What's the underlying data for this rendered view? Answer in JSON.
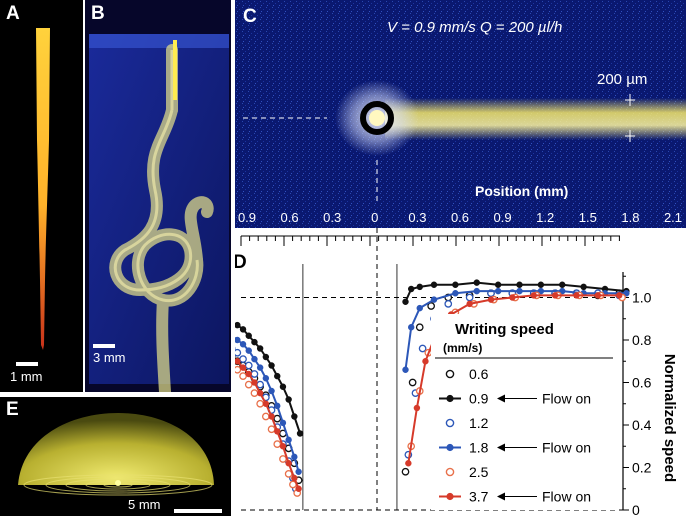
{
  "panels": {
    "a": {
      "label": "A",
      "scale": "1 mm"
    },
    "b": {
      "label": "B",
      "scale": "3 mm"
    },
    "c": {
      "label": "C",
      "params": "V = 0.9 mm/s   Q = 200 µl/h",
      "width_label": "200 µm",
      "axis_title": "Position (mm)",
      "ticks": [
        "0.9",
        "0.6",
        "0.3",
        "0",
        "0.3",
        "0.6",
        "0.9",
        "1.2",
        "1.5",
        "1.8",
        "2.1"
      ]
    },
    "d": {
      "label": "D"
    },
    "e": {
      "label": "E",
      "scale": "5 mm"
    }
  },
  "colors": {
    "black": "#111111",
    "blue": "#2c57b8",
    "red": "#d63a2a",
    "orange": "#e8704a",
    "glow": "#f5e86a"
  },
  "chart_data": {
    "type": "scatter",
    "ylabel": "Normalized speed",
    "yticks": [
      "0",
      "0.2",
      "0.4",
      "0.6",
      "0.8",
      "1.0"
    ],
    "ylim": [
      0,
      1.12
    ],
    "legend": {
      "title": "Writing speed",
      "unit": "(mm/s)",
      "flow_label": "Flow on",
      "placement": "bottom-right"
    },
    "series": [
      {
        "name": "0.6",
        "marker": "open",
        "color": "#111111",
        "flow_on": false,
        "left": [
          [
            -1.02,
            0.72
          ],
          [
            -0.98,
            0.7
          ],
          [
            -0.94,
            0.68
          ],
          [
            -0.9,
            0.65
          ],
          [
            -0.86,
            0.62
          ],
          [
            -0.82,
            0.58
          ],
          [
            -0.78,
            0.54
          ],
          [
            -0.74,
            0.49
          ],
          [
            -0.7,
            0.43
          ],
          [
            -0.66,
            0.36
          ],
          [
            -0.62,
            0.29
          ],
          [
            -0.58,
            0.22
          ],
          [
            -0.55,
            0.14
          ]
        ],
        "right": [
          [
            0.2,
            0.18
          ],
          [
            0.25,
            0.6
          ],
          [
            0.3,
            0.86
          ],
          [
            0.38,
            0.96
          ],
          [
            0.5,
            1.0
          ],
          [
            0.65,
            1.01
          ],
          [
            0.8,
            1.02
          ],
          [
            0.95,
            1.02
          ],
          [
            1.1,
            1.02
          ],
          [
            1.25,
            1.02
          ],
          [
            1.4,
            1.02
          ],
          [
            1.55,
            1.01
          ],
          [
            1.7,
            1.02
          ]
        ]
      },
      {
        "name": "0.9",
        "marker": "filled",
        "color": "#111111",
        "flow_on": true,
        "left": [
          [
            -1.02,
            0.88
          ],
          [
            -0.98,
            0.87
          ],
          [
            -0.94,
            0.85
          ],
          [
            -0.9,
            0.82
          ],
          [
            -0.86,
            0.79
          ],
          [
            -0.82,
            0.76
          ],
          [
            -0.78,
            0.72
          ],
          [
            -0.74,
            0.68
          ],
          [
            -0.7,
            0.63
          ],
          [
            -0.66,
            0.58
          ],
          [
            -0.62,
            0.52
          ],
          [
            -0.58,
            0.44
          ],
          [
            -0.54,
            0.36
          ]
        ],
        "right": [
          [
            0.2,
            0.98
          ],
          [
            0.24,
            1.04
          ],
          [
            0.3,
            1.05
          ],
          [
            0.4,
            1.06
          ],
          [
            0.55,
            1.06
          ],
          [
            0.7,
            1.07
          ],
          [
            0.85,
            1.06
          ],
          [
            1.0,
            1.06
          ],
          [
            1.15,
            1.06
          ],
          [
            1.3,
            1.06
          ],
          [
            1.45,
            1.05
          ],
          [
            1.6,
            1.04
          ],
          [
            1.75,
            1.03
          ]
        ]
      },
      {
        "name": "1.2",
        "marker": "open",
        "color": "#2c57b8",
        "flow_on": false,
        "left": [
          [
            -1.02,
            0.76
          ],
          [
            -0.98,
            0.74
          ],
          [
            -0.94,
            0.71
          ],
          [
            -0.9,
            0.68
          ],
          [
            -0.86,
            0.64
          ],
          [
            -0.82,
            0.59
          ],
          [
            -0.78,
            0.53
          ],
          [
            -0.74,
            0.47
          ],
          [
            -0.7,
            0.39
          ],
          [
            -0.66,
            0.31
          ],
          [
            -0.62,
            0.23
          ],
          [
            -0.59,
            0.15
          ],
          [
            -0.57,
            0.1
          ]
        ],
        "right": [
          [
            0.22,
            0.26
          ],
          [
            0.27,
            0.55
          ],
          [
            0.32,
            0.76
          ],
          [
            0.4,
            0.9
          ],
          [
            0.5,
            0.97
          ],
          [
            0.65,
            1.0
          ],
          [
            0.8,
            1.02
          ],
          [
            0.95,
            1.02
          ],
          [
            1.1,
            1.02
          ],
          [
            1.25,
            1.02
          ],
          [
            1.4,
            1.02
          ],
          [
            1.55,
            1.02
          ],
          [
            1.7,
            1.01
          ]
        ]
      },
      {
        "name": "1.8",
        "marker": "filled",
        "color": "#2c57b8",
        "flow_on": true,
        "left": [
          [
            -1.02,
            0.82
          ],
          [
            -0.98,
            0.8
          ],
          [
            -0.94,
            0.78
          ],
          [
            -0.9,
            0.75
          ],
          [
            -0.86,
            0.71
          ],
          [
            -0.82,
            0.67
          ],
          [
            -0.78,
            0.62
          ],
          [
            -0.74,
            0.56
          ],
          [
            -0.7,
            0.49
          ],
          [
            -0.66,
            0.41
          ],
          [
            -0.62,
            0.33
          ],
          [
            -0.58,
            0.25
          ],
          [
            -0.55,
            0.18
          ]
        ],
        "right": [
          [
            0.2,
            0.66
          ],
          [
            0.24,
            0.86
          ],
          [
            0.3,
            0.95
          ],
          [
            0.4,
            0.99
          ],
          [
            0.55,
            1.02
          ],
          [
            0.7,
            1.03
          ],
          [
            0.85,
            1.03
          ],
          [
            1.0,
            1.03
          ],
          [
            1.15,
            1.03
          ],
          [
            1.3,
            1.03
          ],
          [
            1.45,
            1.02
          ],
          [
            1.6,
            1.02
          ],
          [
            1.75,
            1.02
          ]
        ]
      },
      {
        "name": "2.5",
        "marker": "open",
        "color": "#e8704a",
        "flow_on": false,
        "left": [
          [
            -0.98,
            0.66
          ],
          [
            -0.94,
            0.63
          ],
          [
            -0.9,
            0.59
          ],
          [
            -0.86,
            0.55
          ],
          [
            -0.82,
            0.5
          ],
          [
            -0.78,
            0.44
          ],
          [
            -0.74,
            0.38
          ],
          [
            -0.7,
            0.31
          ],
          [
            -0.66,
            0.24
          ],
          [
            -0.62,
            0.17
          ],
          [
            -0.59,
            0.12
          ],
          [
            -0.56,
            0.08
          ]
        ],
        "right": [
          [
            0.24,
            0.3
          ],
          [
            0.3,
            0.56
          ],
          [
            0.36,
            0.74
          ],
          [
            0.44,
            0.86
          ],
          [
            0.55,
            0.93
          ],
          [
            0.68,
            0.97
          ],
          [
            0.82,
            0.99
          ],
          [
            0.97,
            1.0
          ],
          [
            1.12,
            1.01
          ],
          [
            1.27,
            1.01
          ],
          [
            1.42,
            1.01
          ],
          [
            1.57,
            1.01
          ],
          [
            1.72,
            1.0
          ]
        ]
      },
      {
        "name": "3.7",
        "marker": "filled",
        "color": "#d63a2a",
        "flow_on": true,
        "left": [
          [
            -0.98,
            0.7
          ],
          [
            -0.94,
            0.67
          ],
          [
            -0.9,
            0.64
          ],
          [
            -0.86,
            0.6
          ],
          [
            -0.82,
            0.55
          ],
          [
            -0.78,
            0.5
          ],
          [
            -0.74,
            0.44
          ],
          [
            -0.7,
            0.37
          ],
          [
            -0.66,
            0.3
          ],
          [
            -0.62,
            0.22
          ],
          [
            -0.58,
            0.15
          ],
          [
            -0.55,
            0.1
          ]
        ],
        "right": [
          [
            0.22,
            0.22
          ],
          [
            0.28,
            0.48
          ],
          [
            0.34,
            0.7
          ],
          [
            0.42,
            0.84
          ],
          [
            0.52,
            0.92
          ],
          [
            0.65,
            0.97
          ],
          [
            0.8,
            0.99
          ],
          [
            0.95,
            1.0
          ],
          [
            1.1,
            1.01
          ],
          [
            1.25,
            1.01
          ],
          [
            1.4,
            1.01
          ],
          [
            1.55,
            1.01
          ],
          [
            1.7,
            1.01
          ]
        ]
      }
    ]
  }
}
